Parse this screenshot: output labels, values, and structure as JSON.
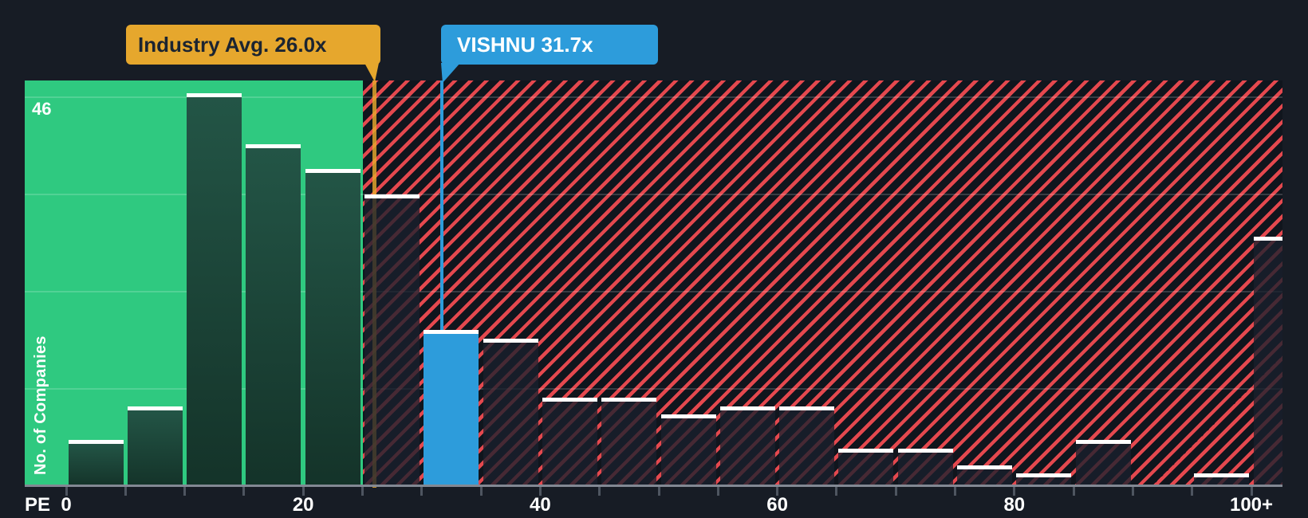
{
  "chart_data": {
    "type": "bar",
    "xlabel": "PE",
    "ylabel": "No. of Companies",
    "ymax_label": "46",
    "ylim": [
      0,
      46
    ],
    "grid_values": [
      11.5,
      23,
      34.5,
      46
    ],
    "grid": "horizontal, quarters of max (46)",
    "legend_position": "none",
    "bin_width_pe": 5,
    "x_ticks": [
      {
        "pe": 0,
        "label": "0"
      },
      {
        "pe": 20,
        "label": "20"
      },
      {
        "pe": 40,
        "label": "40"
      },
      {
        "pe": 60,
        "label": "60"
      },
      {
        "pe": 80,
        "label": "80"
      },
      {
        "pe": 100,
        "label": "100+"
      }
    ],
    "bins": [
      {
        "range": "0-5",
        "count": 5,
        "zone": "below-avg"
      },
      {
        "range": "5-10",
        "count": 9,
        "zone": "below-avg"
      },
      {
        "range": "10-15",
        "count": 46,
        "zone": "below-avg"
      },
      {
        "range": "15-20",
        "count": 40,
        "zone": "below-avg"
      },
      {
        "range": "20-25",
        "count": 37,
        "zone": "below-avg"
      },
      {
        "range": "25-30",
        "count": 34,
        "zone": "above-avg"
      },
      {
        "range": "30-35",
        "count": 18,
        "zone": "above-avg",
        "highlight": "company"
      },
      {
        "range": "35-40",
        "count": 17,
        "zone": "above-avg"
      },
      {
        "range": "40-45",
        "count": 10,
        "zone": "above-avg"
      },
      {
        "range": "45-50",
        "count": 10,
        "zone": "above-avg"
      },
      {
        "range": "50-55",
        "count": 8,
        "zone": "above-avg"
      },
      {
        "range": "55-60",
        "count": 9,
        "zone": "above-avg"
      },
      {
        "range": "60-65",
        "count": 9,
        "zone": "above-avg"
      },
      {
        "range": "65-70",
        "count": 4,
        "zone": "above-avg"
      },
      {
        "range": "70-75",
        "count": 4,
        "zone": "above-avg"
      },
      {
        "range": "75-80",
        "count": 2,
        "zone": "above-avg"
      },
      {
        "range": "80-85",
        "count": 1,
        "zone": "above-avg"
      },
      {
        "range": "85-90",
        "count": 5,
        "zone": "above-avg"
      },
      {
        "range": "90-95",
        "count": 0,
        "zone": "above-avg"
      },
      {
        "range": "95-100",
        "count": 1,
        "zone": "above-avg"
      },
      {
        "range": "100+",
        "count": 29,
        "zone": "above-avg"
      }
    ],
    "markers": [
      {
        "id": "industry-avg",
        "label": "Industry Avg. 26.0x",
        "value": 26.0,
        "color": "#E6A72D"
      },
      {
        "id": "company",
        "label": "VISHNU 31.7x",
        "value": 31.7,
        "color": "#2D9CDB"
      }
    ]
  },
  "colors": {
    "background": "#171C25",
    "below_avg_region": "#2FC980",
    "above_avg_stripe": "#E4484E",
    "company_bar": "#2D9CDB",
    "industry_marker": "#E6A72D",
    "bar_cap": "#FFFFFF",
    "axis_text": "#FFFFFF"
  }
}
